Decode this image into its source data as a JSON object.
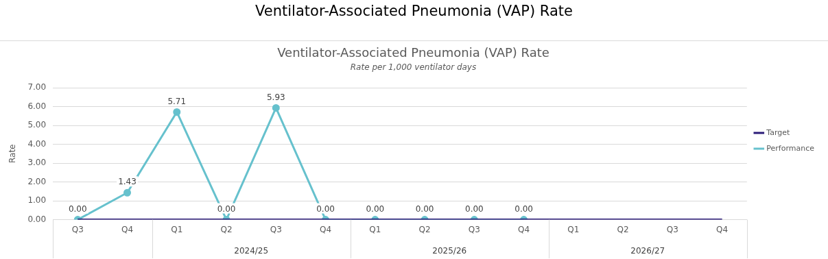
{
  "chart_data": {
    "type": "line",
    "title": "Ventilator-Associated Pneumonia (VAP) Rate",
    "subtitle": "Rate per 1,000 ventilator days",
    "ylabel": "Rate",
    "categories": [
      "Q3",
      "Q4",
      "Q1",
      "Q2",
      "Q3",
      "Q4",
      "Q1",
      "Q2",
      "Q3",
      "Q4",
      "Q1",
      "Q2",
      "Q3",
      "Q4"
    ],
    "series": [
      {
        "name": "Target",
        "color": "#2b1b78",
        "marker": "none",
        "values": [
          0,
          0,
          0,
          0,
          0,
          0,
          0,
          0,
          0,
          0,
          0,
          0,
          0,
          0
        ]
      },
      {
        "name": "Performance",
        "color": "#66c1cd",
        "marker": "circle",
        "values": [
          0,
          1.43,
          5.71,
          0,
          5.93,
          0,
          0,
          0,
          0,
          0,
          null,
          null,
          null,
          null
        ],
        "value_labels": [
          "0.00",
          "1.43",
          "5.71",
          "0.00",
          "5.93",
          "0.00",
          "0.00",
          "0.00",
          "0.00",
          "0.00",
          null,
          null,
          null,
          null
        ]
      }
    ],
    "ylim": [
      0,
      7
    ],
    "yticks": [
      {
        "value": 0,
        "label": "0.00"
      },
      {
        "value": 1,
        "label": "1.00"
      },
      {
        "value": 2,
        "label": "2.00"
      },
      {
        "value": 3,
        "label": "3.00"
      },
      {
        "value": 4,
        "label": "4.00"
      },
      {
        "value": 5,
        "label": "5.00"
      },
      {
        "value": 6,
        "label": "6.00"
      },
      {
        "value": 7,
        "label": "7.00"
      }
    ],
    "grid": "y",
    "legend": "right",
    "annotations": [
      "Ventilator-Associated Pneumonia (VAP) Rate",
      "2024/25",
      "2025/26",
      "2026/27"
    ]
  }
}
